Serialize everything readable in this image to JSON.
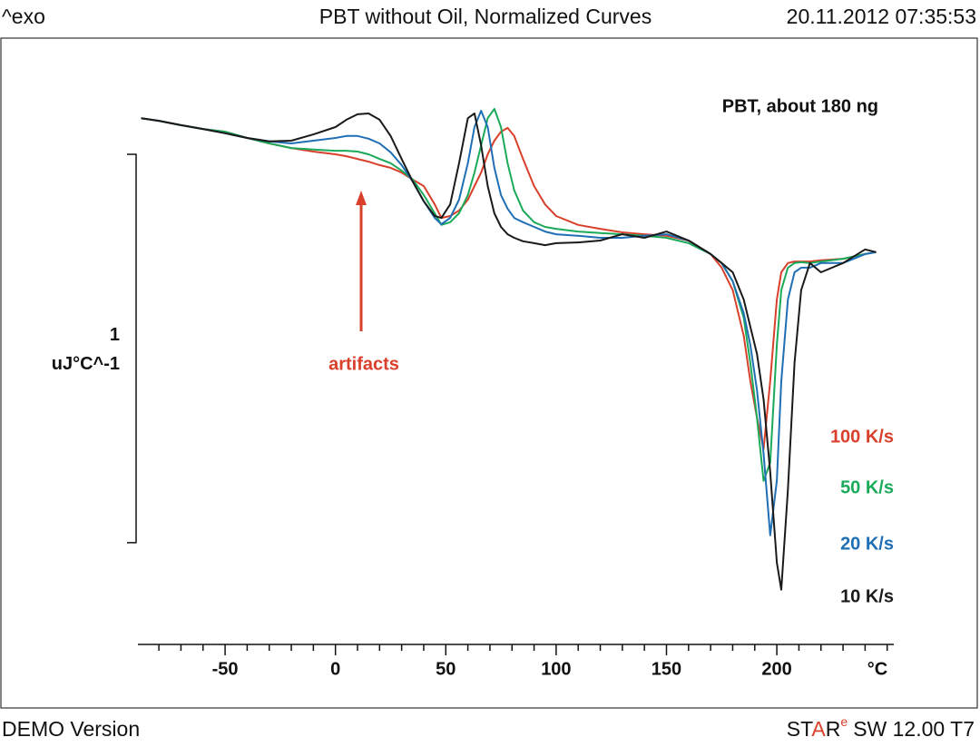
{
  "chart_data": {
    "type": "line",
    "corner_left": "^exo",
    "title": "PBT without Oil, Normalized Curves",
    "timestamp": "20.11.2012 07:35:53",
    "footer_left": "DEMO Version",
    "brand": [
      "ST",
      "A",
      "R"
    ],
    "brand_sup": "e",
    "version": "SW 12.00 T7",
    "sample_note": "PBT, about 180 ng",
    "annotation": "artifacts",
    "x_label": "°C",
    "scale_bar": {
      "from": 0,
      "length": 1
    },
    "scale_unit": "uJ°C^-1",
    "xlim": [
      -89.5,
      253
    ],
    "ylim": [
      -0.262,
      1.299
    ],
    "xticks": [
      -50,
      0,
      50,
      100,
      150,
      200
    ],
    "xminorticks": [
      -80,
      -70,
      -60,
      -40,
      -30,
      -20,
      -10,
      10,
      20,
      30,
      40,
      60,
      70,
      80,
      90,
      110,
      120,
      130,
      140,
      160,
      170,
      180,
      190,
      210,
      220,
      230,
      240,
      250
    ],
    "x": [
      -88,
      -80,
      -70,
      -60,
      -50,
      -40,
      -30,
      -20,
      -10,
      0,
      5,
      10,
      15,
      20,
      25,
      30,
      35,
      40,
      45,
      48,
      52,
      56,
      60,
      63,
      66,
      69,
      72,
      75,
      78,
      81,
      85,
      90,
      95,
      100,
      110,
      120,
      130,
      140,
      150,
      160,
      170,
      175,
      180,
      185,
      188,
      191,
      194,
      197,
      200,
      202,
      205,
      208,
      211,
      215,
      220,
      230,
      240,
      245
    ],
    "series": [
      {
        "name": "100 K/s",
        "color": "#d9402b",
        "values": [
          1.093,
          1.086,
          1.075,
          1.065,
          1.058,
          1.042,
          1.028,
          1.016,
          1.007,
          1.0,
          0.995,
          0.988,
          0.981,
          0.972,
          0.965,
          0.953,
          0.935,
          0.918,
          0.871,
          0.836,
          0.841,
          0.855,
          0.883,
          0.918,
          0.953,
          1.0,
          1.035,
          1.058,
          1.068,
          1.047,
          0.988,
          0.918,
          0.871,
          0.841,
          0.818,
          0.808,
          0.799,
          0.794,
          0.79,
          0.778,
          0.743,
          0.708,
          0.65,
          0.533,
          0.416,
          0.322,
          0.241,
          0.416,
          0.626,
          0.696,
          0.72,
          0.724,
          0.724,
          0.724,
          0.727,
          0.731,
          0.743,
          0.748
        ]
      },
      {
        "name": "50 K/s",
        "color": "#1aaa5a",
        "values": [
          1.093,
          1.086,
          1.075,
          1.065,
          1.058,
          1.042,
          1.028,
          1.016,
          1.012,
          1.009,
          1.009,
          1.007,
          1.0,
          0.988,
          0.977,
          0.958,
          0.935,
          0.895,
          0.848,
          0.818,
          0.825,
          0.848,
          0.895,
          0.953,
          1.023,
          1.093,
          1.117,
          1.07,
          0.977,
          0.907,
          0.855,
          0.825,
          0.813,
          0.808,
          0.801,
          0.797,
          0.794,
          0.79,
          0.785,
          0.771,
          0.743,
          0.72,
          0.673,
          0.579,
          0.463,
          0.322,
          0.159,
          0.206,
          0.509,
          0.65,
          0.708,
          0.72,
          0.722,
          0.72,
          0.724,
          0.731,
          0.743,
          0.748
        ]
      },
      {
        "name": "20 K/s",
        "color": "#1f6fb5",
        "values": [
          1.093,
          1.086,
          1.075,
          1.065,
          1.054,
          1.042,
          1.033,
          1.028,
          1.035,
          1.042,
          1.047,
          1.047,
          1.04,
          1.028,
          1.005,
          0.972,
          0.93,
          0.879,
          0.836,
          0.82,
          0.836,
          0.883,
          0.977,
          1.07,
          1.112,
          1.07,
          0.965,
          0.895,
          0.86,
          0.836,
          0.825,
          0.813,
          0.801,
          0.794,
          0.79,
          0.785,
          0.785,
          0.79,
          0.794,
          0.778,
          0.743,
          0.72,
          0.673,
          0.591,
          0.509,
          0.393,
          0.229,
          0.019,
          0.159,
          0.416,
          0.626,
          0.696,
          0.708,
          0.708,
          0.72,
          0.72,
          0.743,
          0.748
        ]
      },
      {
        "name": "10 K/s",
        "color": "#1a1a1a",
        "values": [
          1.093,
          1.086,
          1.075,
          1.065,
          1.054,
          1.042,
          1.033,
          1.035,
          1.051,
          1.07,
          1.089,
          1.103,
          1.105,
          1.089,
          1.047,
          0.988,
          0.93,
          0.879,
          0.841,
          0.836,
          0.871,
          0.977,
          1.093,
          1.105,
          1.023,
          0.918,
          0.848,
          0.813,
          0.794,
          0.785,
          0.776,
          0.771,
          0.766,
          0.771,
          0.773,
          0.778,
          0.794,
          0.785,
          0.801,
          0.778,
          0.743,
          0.72,
          0.696,
          0.626,
          0.556,
          0.486,
          0.369,
          0.182,
          -0.051,
          -0.121,
          0.136,
          0.463,
          0.65,
          0.72,
          0.696,
          0.72,
          0.755,
          0.748
        ]
      }
    ]
  }
}
